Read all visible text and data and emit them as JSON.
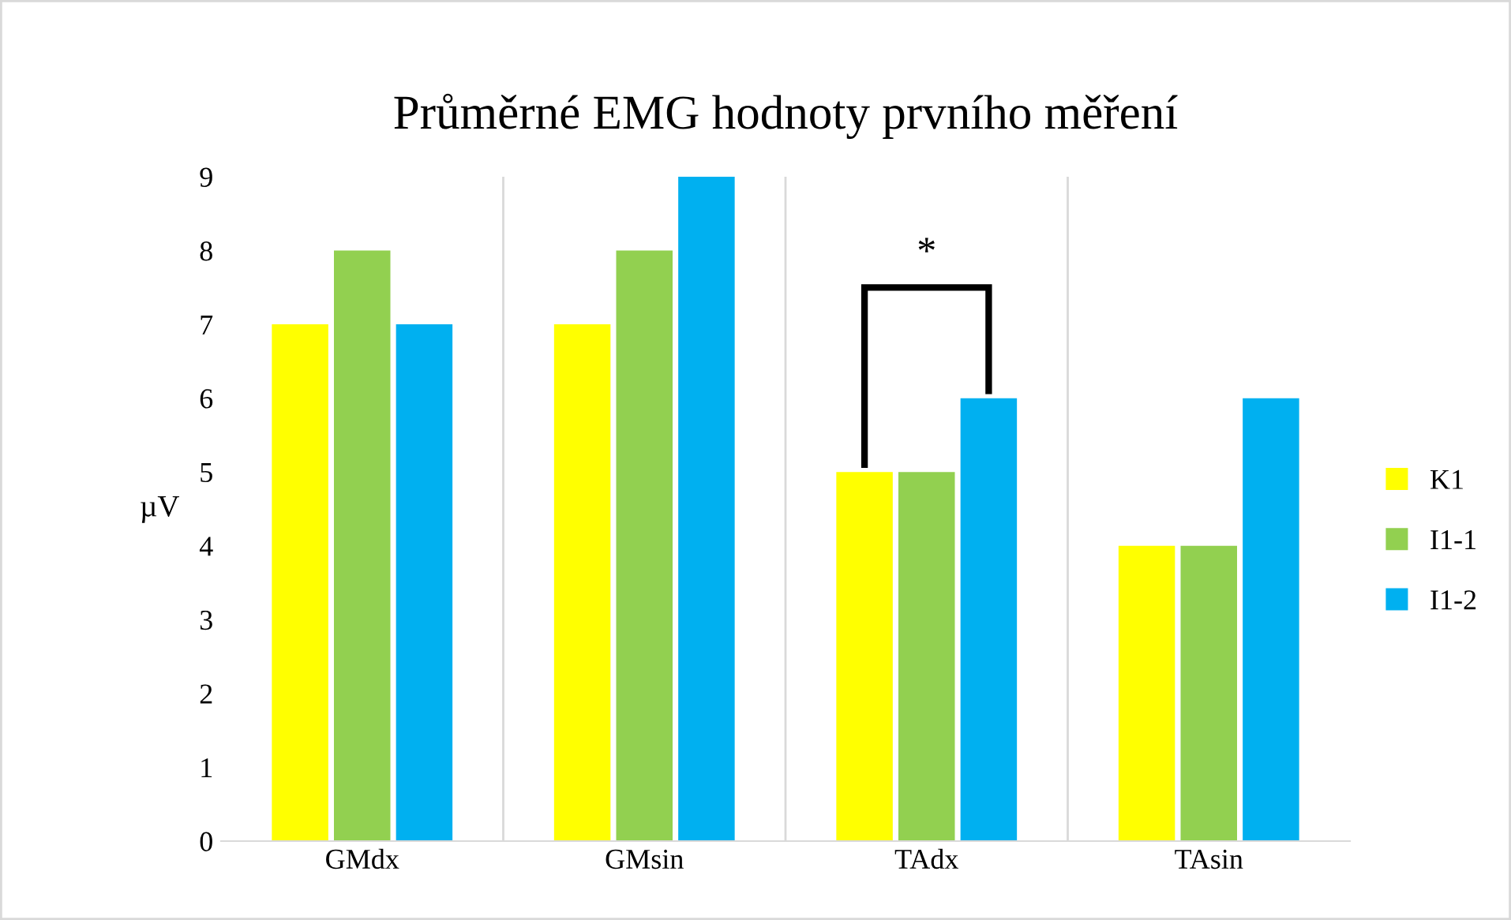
{
  "chart_data": {
    "type": "bar",
    "title": "Průměrné EMG hodnoty prvního měření",
    "ylabel": "µV",
    "categories": [
      "GMdx",
      "GMsin",
      "TAdx",
      "TAsin"
    ],
    "series": [
      {
        "name": "K1",
        "color": "#ffff00",
        "values": [
          7,
          7,
          5,
          4
        ]
      },
      {
        "name": "I1-1",
        "color": "#92d050",
        "values": [
          8,
          8,
          5,
          4
        ]
      },
      {
        "name": "I1-2",
        "color": "#00b0f0",
        "values": [
          7,
          9,
          6,
          6
        ]
      }
    ],
    "ylim": [
      0,
      9
    ],
    "yticks": [
      0,
      1,
      2,
      3,
      4,
      5,
      6,
      7,
      8,
      9
    ],
    "grid": "x",
    "legend": "right",
    "annotations": [
      "*"
    ]
  }
}
